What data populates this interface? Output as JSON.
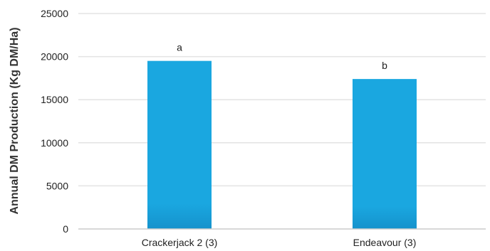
{
  "chart_data": {
    "type": "bar",
    "title": "",
    "xlabel": "",
    "ylabel": "Annual DM Production (Kg DM/Ha)",
    "categories": [
      "Crackerjack 2 (3)",
      "Endeavour (3)"
    ],
    "values": [
      19500,
      17400
    ],
    "data_labels": [
      "a",
      "b"
    ],
    "ylim": [
      0,
      25000
    ],
    "yticks": [
      0,
      5000,
      10000,
      15000,
      20000,
      25000
    ],
    "ytick_labels": [
      "0",
      "5000",
      "10000",
      "15000",
      "20000",
      "25000"
    ],
    "grid": "horizontal",
    "legend": "none",
    "colors": {
      "bar": "#1aa7e0",
      "bar_dark": "#1592cc",
      "grid": "#e3e3e3",
      "axis": "#cccccc"
    }
  }
}
